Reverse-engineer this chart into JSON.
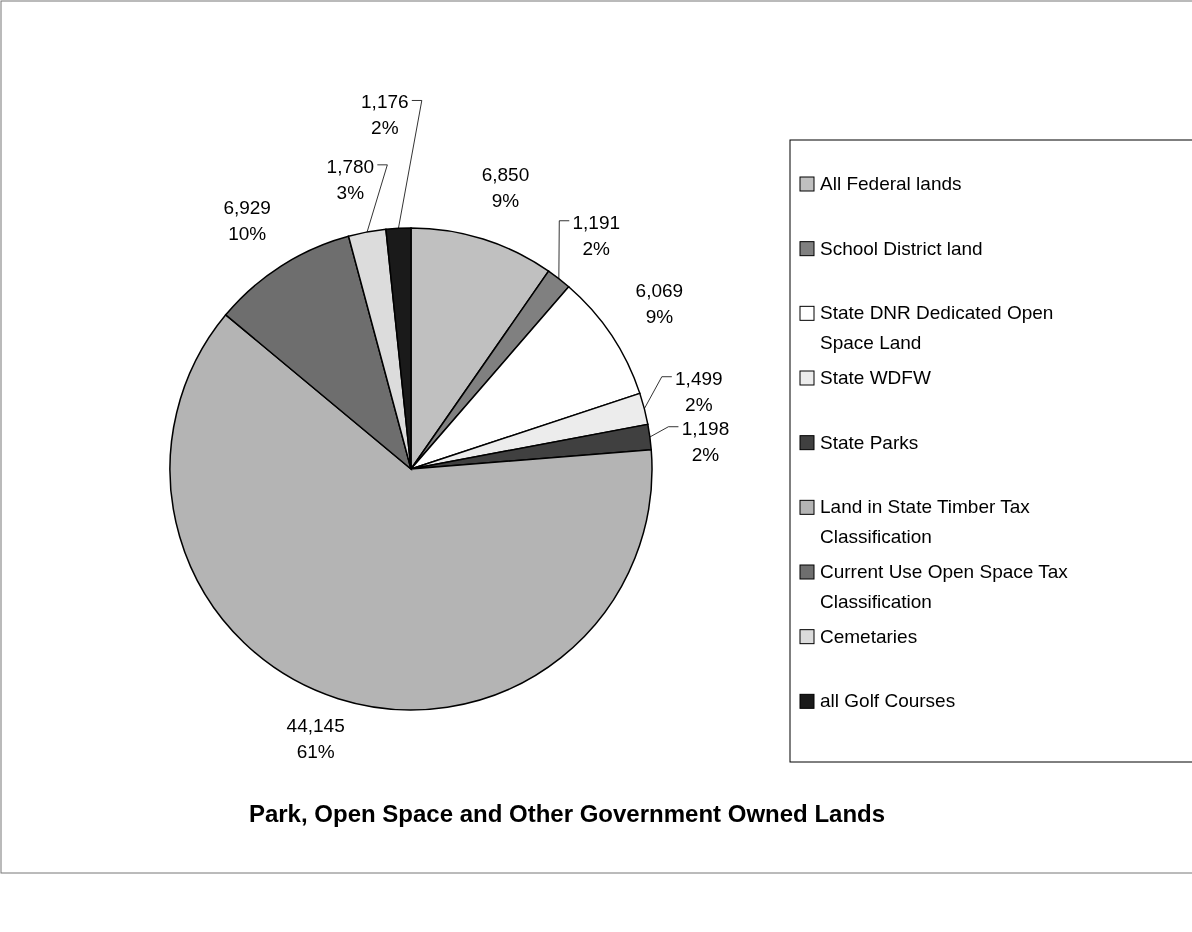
{
  "chart_data": {
    "type": "pie",
    "title": "Park, Open Space and Other Government Owned Lands",
    "categories": [
      "All Federal lands",
      "School District land",
      "State DNR Dedicated Open Space Land",
      "State WDFW",
      "State Parks",
      "Land in State Timber Tax Classification",
      "Current Use Open Space Tax Classification",
      "Cemetaries",
      "all Golf Courses"
    ],
    "values": [
      6850,
      1191,
      6069,
      1499,
      1198,
      44145,
      6929,
      1780,
      1176
    ],
    "value_labels": [
      "6,850\n9%",
      "1,191\n2%",
      "6,069\n9%",
      "1,499\n2%",
      "1,198\n2%",
      "44,145\n61%",
      "6,929\n10%",
      "1,780\n3%",
      "1,176\n2%"
    ],
    "colors": [
      "#c0c0c0",
      "#808080",
      "#ffffff",
      "#ececec",
      "#404040",
      "#b4b4b4",
      "#6e6e6e",
      "#dcdcdc",
      "#1a1a1a"
    ],
    "legend": "right"
  }
}
